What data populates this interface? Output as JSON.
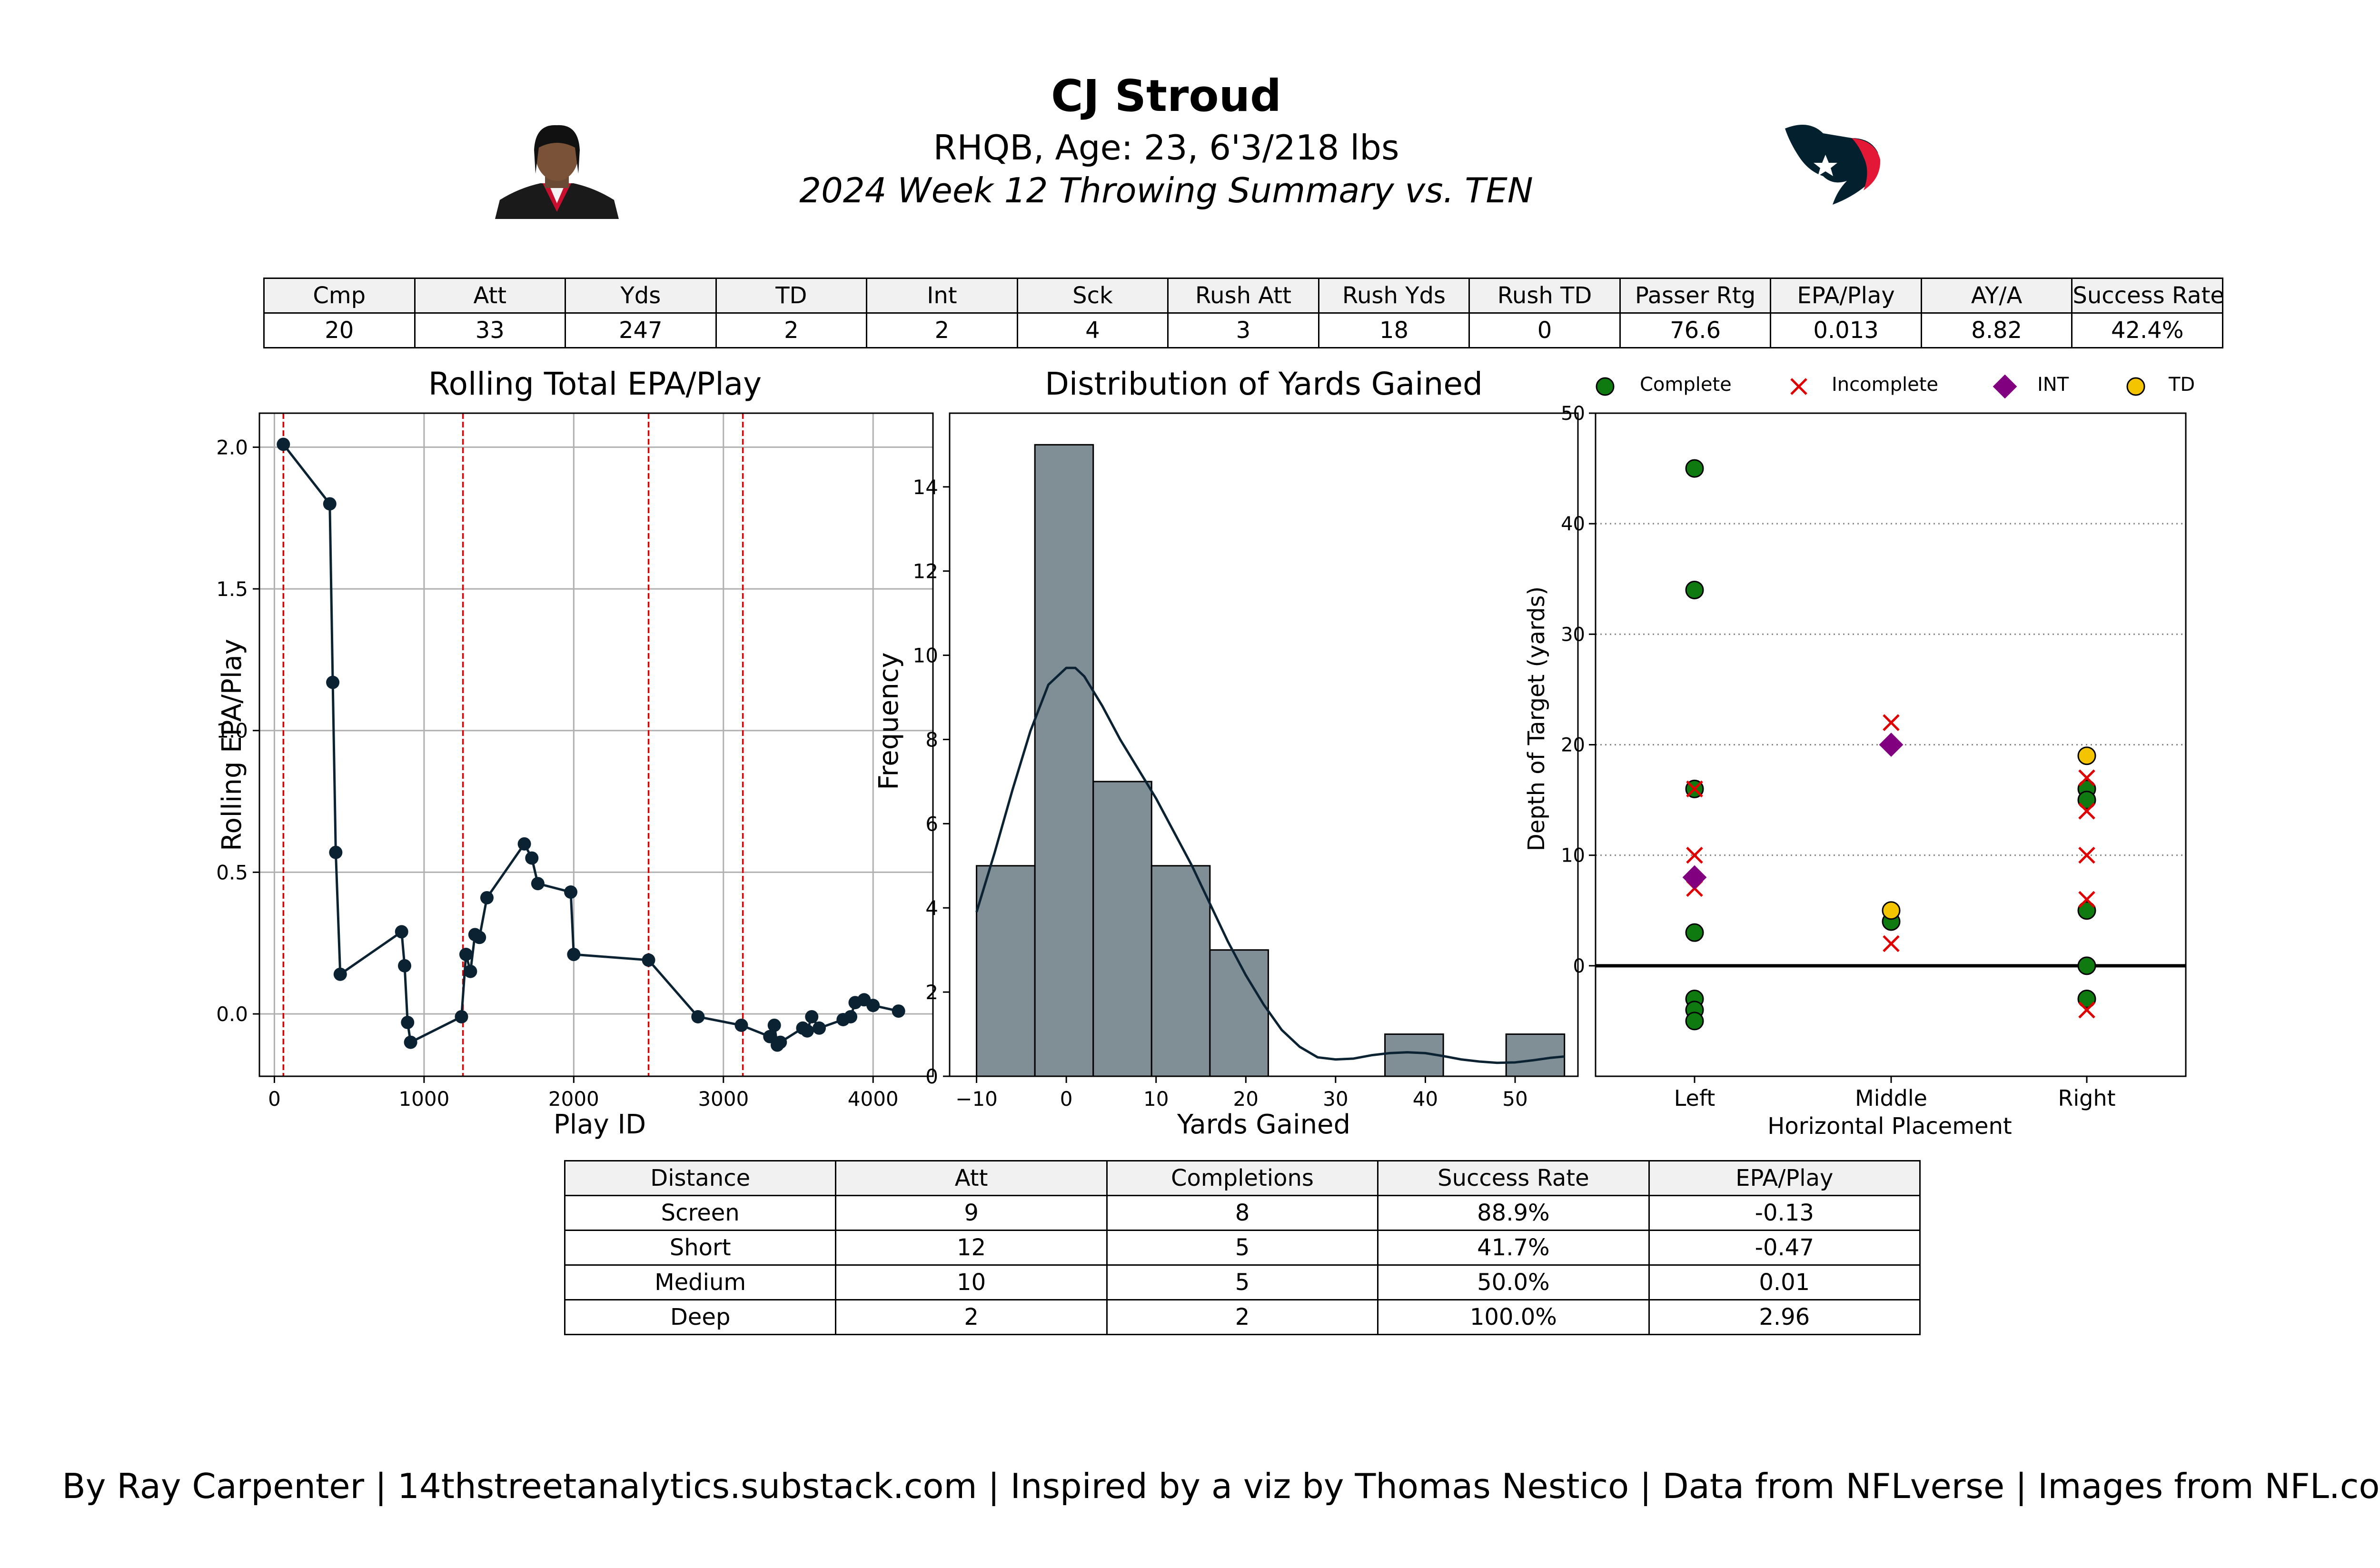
{
  "header": {
    "player_name": "CJ Stroud",
    "player_info": "RHQB, Age: 23, 6'3/218 lbs",
    "game_summary": "2024 Week 12 Throwing Summary vs. TEN",
    "player_photo_icon": "player-headshot",
    "team_logo_icon": "houston-texans-logo"
  },
  "summary_table": {
    "headers": [
      "Cmp",
      "Att",
      "Yds",
      "TD",
      "Int",
      "Sck",
      "Rush Att",
      "Rush Yds",
      "Rush TD",
      "Passer Rtg",
      "EPA/Play",
      "AY/A",
      "Success Rate"
    ],
    "values": [
      "20",
      "33",
      "247",
      "2",
      "2",
      "4",
      "3",
      "18",
      "0",
      "76.6",
      "0.013",
      "8.82",
      "42.4%"
    ]
  },
  "distance_table": {
    "headers": [
      "Distance",
      "Att",
      "Completions",
      "Success Rate",
      "EPA/Play"
    ],
    "rows": [
      [
        "Screen",
        "9",
        "8",
        "88.9%",
        "-0.13"
      ],
      [
        "Short",
        "12",
        "5",
        "41.7%",
        "-0.47"
      ],
      [
        "Medium",
        "10",
        "5",
        "50.0%",
        "0.01"
      ],
      [
        "Deep",
        "2",
        "2",
        "100.0%",
        "2.96"
      ]
    ]
  },
  "footer": "By Ray Carpenter | 14thstreetanalytics.substack.com | Inspired by a viz by Thomas Nestico | Data from NFLverse | Images from NFL.com",
  "colors": {
    "line": "#0b2233",
    "hist_fill": "#808e96",
    "drive_marker": "#e00000",
    "complete": "#0f7a0f",
    "incomplete": "#e00000",
    "int": "#800080",
    "td": "#f5c400"
  },
  "chart_data": [
    {
      "type": "line",
      "title": "Rolling Total EPA/Play",
      "xlabel": "Play ID",
      "ylabel": "Rolling EPA/Play",
      "xlim": [
        -100,
        4400
      ],
      "ylim": [
        -0.22,
        2.12
      ],
      "xticks": [
        0,
        1000,
        2000,
        3000,
        4000
      ],
      "yticks": [
        0.0,
        0.5,
        1.0,
        1.5,
        2.0
      ],
      "grid": true,
      "drive_markers_x": [
        60,
        1260,
        2500,
        3130
      ],
      "series": [
        {
          "x": [
            60,
            370,
            390,
            410,
            440,
            850,
            870,
            890,
            910,
            1250,
            1280,
            1310,
            1340,
            1370,
            1420,
            1670,
            1720,
            1760,
            1980,
            2000,
            2500,
            2830,
            3120,
            3310,
            3340,
            3360,
            3380,
            3530,
            3560,
            3590,
            3640,
            3800,
            3850,
            3880,
            3940,
            4000,
            4170
          ],
          "y": [
            2.01,
            1.8,
            1.17,
            0.57,
            0.14,
            0.29,
            0.17,
            -0.03,
            -0.1,
            -0.01,
            0.21,
            0.15,
            0.28,
            0.27,
            0.41,
            0.6,
            0.55,
            0.46,
            0.43,
            0.21,
            0.19,
            -0.01,
            -0.04,
            -0.08,
            -0.04,
            -0.11,
            -0.1,
            -0.05,
            -0.06,
            -0.01,
            -0.05,
            -0.02,
            -0.01,
            0.04,
            0.05,
            0.03,
            0.01
          ]
        }
      ]
    },
    {
      "type": "bar",
      "title": "Distribution of Yards Gained",
      "xlabel": "Yards Gained",
      "ylabel": "Frequency",
      "xlim": [
        -13,
        57
      ],
      "ylim": [
        0,
        15.75
      ],
      "xticks": [
        -10,
        0,
        10,
        20,
        30,
        40,
        50
      ],
      "yticks": [
        0,
        2,
        4,
        6,
        8,
        10,
        12,
        14
      ],
      "bins": [
        {
          "from": -10,
          "to": -3.5,
          "count": 5
        },
        {
          "from": -3.5,
          "to": 3,
          "count": 15
        },
        {
          "from": 3,
          "to": 9.5,
          "count": 7
        },
        {
          "from": 9.5,
          "to": 16,
          "count": 5
        },
        {
          "from": 16,
          "to": 22.5,
          "count": 3
        },
        {
          "from": 35.5,
          "to": 42,
          "count": 1
        },
        {
          "from": 49,
          "to": 55.5,
          "count": 1
        }
      ],
      "kde": {
        "x": [
          -10,
          -8,
          -6,
          -4,
          -2,
          0,
          1,
          2,
          4,
          6,
          8,
          10,
          12,
          14,
          16,
          18,
          20,
          22,
          24,
          26,
          28,
          30,
          32,
          34,
          36,
          38,
          40,
          42,
          44,
          46,
          48,
          50,
          52,
          54,
          55.5
        ],
        "y": [
          3.9,
          5.3,
          6.8,
          8.2,
          9.3,
          9.7,
          9.7,
          9.5,
          8.8,
          8.0,
          7.3,
          6.6,
          5.8,
          5.0,
          4.1,
          3.2,
          2.4,
          1.7,
          1.1,
          0.7,
          0.45,
          0.4,
          0.42,
          0.5,
          0.55,
          0.57,
          0.55,
          0.48,
          0.4,
          0.35,
          0.32,
          0.33,
          0.38,
          0.44,
          0.47
        ]
      }
    },
    {
      "type": "scatter",
      "title": "",
      "xlabel": "Horizontal Placement",
      "ylabel": "Depth of Target (yards)",
      "categories": [
        "Left",
        "Middle",
        "Right"
      ],
      "ylim": [
        -10,
        50
      ],
      "yticks": [
        0,
        10,
        20,
        30,
        40,
        50
      ],
      "grid": "horizontal dotted",
      "legend": {
        "position": "top",
        "entries": [
          "Complete",
          "Incomplete",
          "INT",
          "TD"
        ]
      },
      "series": [
        {
          "name": "Complete",
          "points": [
            [
              "Left",
              45
            ],
            [
              "Left",
              34
            ],
            [
              "Left",
              16
            ],
            [
              "Left",
              3
            ],
            [
              "Left",
              -3
            ],
            [
              "Left",
              -4
            ],
            [
              "Left",
              -5
            ],
            [
              "Middle",
              4
            ],
            [
              "Right",
              16
            ],
            [
              "Right",
              15
            ],
            [
              "Right",
              5
            ],
            [
              "Right",
              0
            ],
            [
              "Right",
              -3
            ]
          ]
        },
        {
          "name": "Incomplete",
          "points": [
            [
              "Left",
              16
            ],
            [
              "Left",
              10
            ],
            [
              "Left",
              7
            ],
            [
              "Middle",
              22
            ],
            [
              "Middle",
              2
            ],
            [
              "Right",
              17
            ],
            [
              "Right",
              14
            ],
            [
              "Right",
              10
            ],
            [
              "Right",
              6
            ],
            [
              "Right",
              -4
            ]
          ]
        },
        {
          "name": "INT",
          "points": [
            [
              "Left",
              8
            ],
            [
              "Middle",
              20
            ]
          ]
        },
        {
          "name": "TD",
          "points": [
            [
              "Middle",
              5
            ],
            [
              "Right",
              19
            ]
          ]
        }
      ]
    }
  ]
}
